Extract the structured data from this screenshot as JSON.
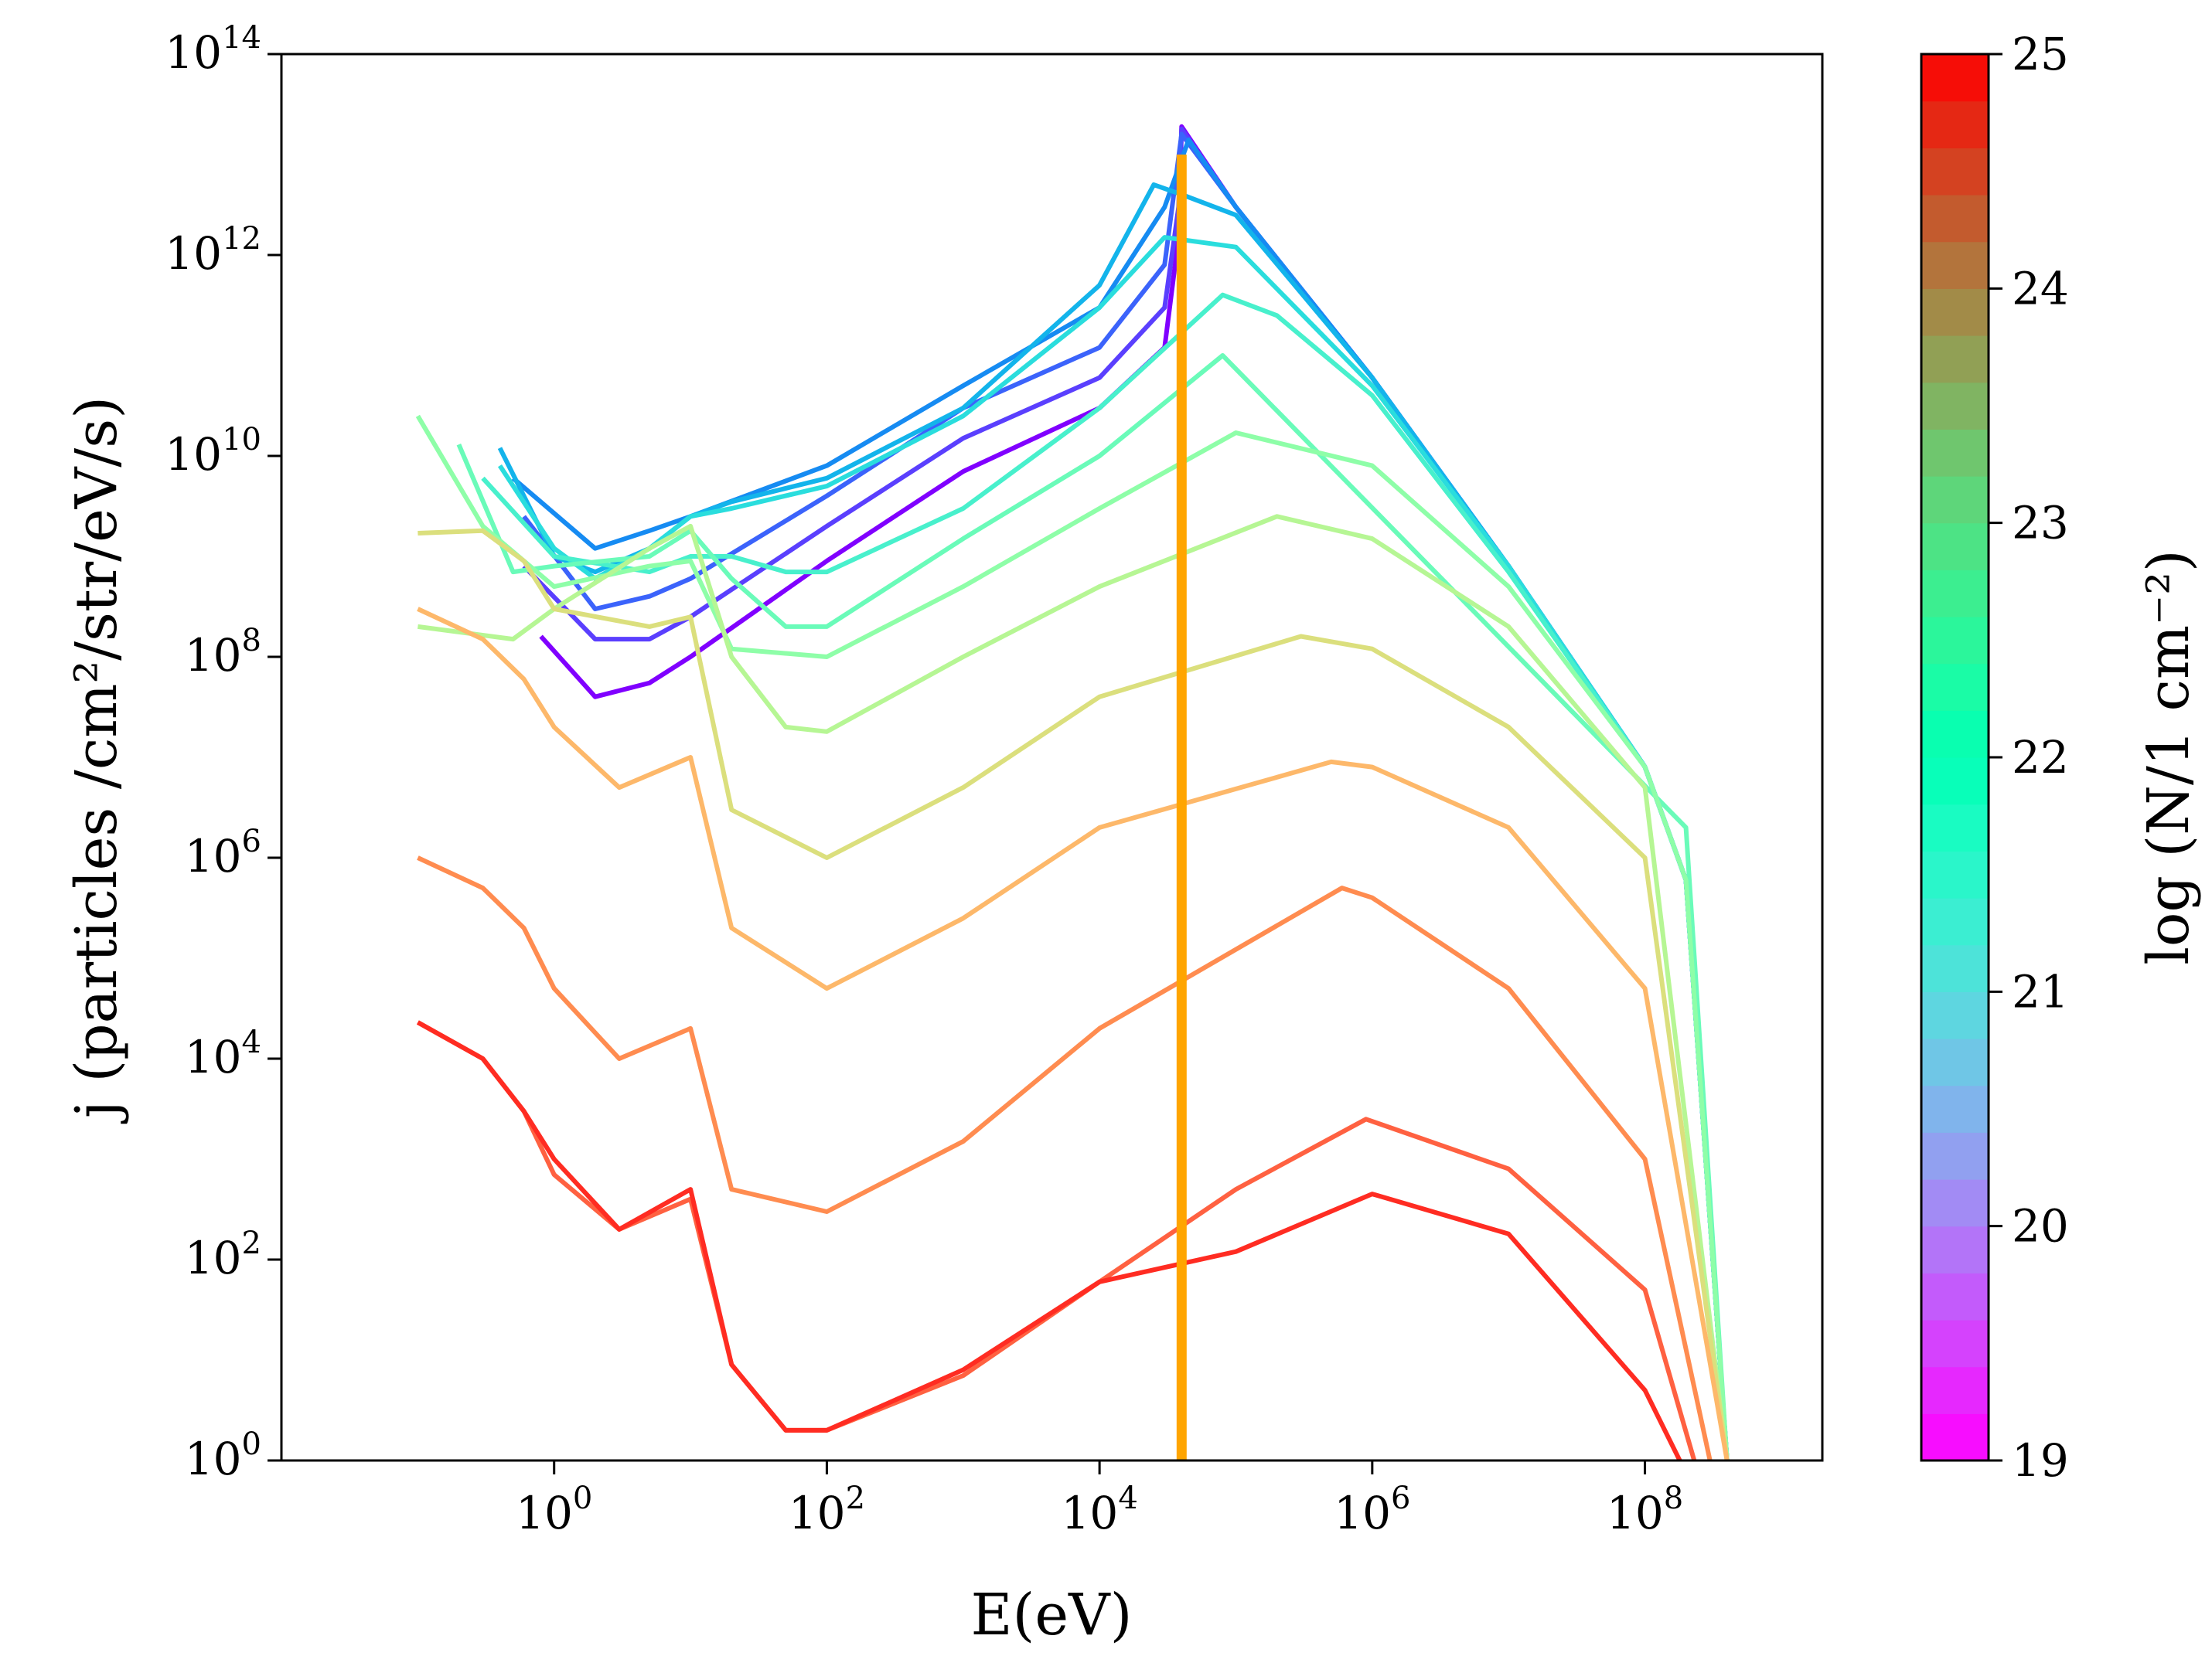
{
  "chart_data": {
    "type": "line",
    "xlabel": "E(eV)",
    "ylabel": "j (particles /cm²/str/eV/s)",
    "x_scale": "log",
    "y_scale": "log",
    "xlim": [
      0.01,
      2000000000
    ],
    "ylim": [
      1,
      100000000000000
    ],
    "x_ticks": [
      {
        "value": 1,
        "base": "10",
        "exp": "0"
      },
      {
        "value": 100,
        "base": "10",
        "exp": "2"
      },
      {
        "value": 10000,
        "base": "10",
        "exp": "4"
      },
      {
        "value": 1000000,
        "base": "10",
        "exp": "6"
      },
      {
        "value": 100000000,
        "base": "10",
        "exp": "8"
      }
    ],
    "y_ticks": [
      {
        "value": 1,
        "base": "10",
        "exp": "0"
      },
      {
        "value": 100,
        "base": "10",
        "exp": "2"
      },
      {
        "value": 10000,
        "base": "10",
        "exp": "4"
      },
      {
        "value": 1000000,
        "base": "10",
        "exp": "6"
      },
      {
        "value": 100000000,
        "base": "10",
        "exp": "8"
      },
      {
        "value": 10000000000,
        "base": "10",
        "exp": "10"
      },
      {
        "value": 1000000000000,
        "base": "10",
        "exp": "12"
      },
      {
        "value": 100000000000000,
        "base": "10",
        "exp": "14"
      }
    ],
    "colorbar": {
      "label": "log (N/1 cm⁻²)",
      "range": [
        19,
        25
      ],
      "ticks": [
        "19",
        "20",
        "21",
        "22",
        "23",
        "24",
        "25"
      ],
      "colormap": "rainbow"
    },
    "vertical_line": {
      "x": 40000,
      "color": "#ffa500"
    },
    "series": [
      {
        "logN": 19.0,
        "color": "#8000ff",
        "points": [
          [
            0.8,
            160000000
          ],
          [
            2,
            40000000
          ],
          [
            5,
            55000000
          ],
          [
            10,
            100000000
          ],
          [
            100,
            900000000
          ],
          [
            1000,
            7000000000
          ],
          [
            10000,
            30000000000
          ],
          [
            30000,
            120000000000
          ],
          [
            38000,
            1500000000000
          ],
          [
            40000,
            19000000000000
          ],
          [
            100000,
            3000000000000
          ],
          [
            1000000,
            60000000000
          ],
          [
            10000000,
            800000000
          ],
          [
            100000000,
            8000000
          ],
          [
            200000000,
            600000
          ],
          [
            400000000,
            1
          ]
        ]
      },
      {
        "logN": 19.5,
        "color": "#5a3ffe",
        "points": [
          [
            0.6,
            800000000
          ],
          [
            2,
            150000000
          ],
          [
            5,
            150000000
          ],
          [
            10,
            250000000
          ],
          [
            100,
            2000000000
          ],
          [
            1000,
            15000000000
          ],
          [
            10000,
            60000000000
          ],
          [
            30000,
            300000000000
          ],
          [
            38000,
            3000000000000
          ],
          [
            40000,
            18000000000000
          ],
          [
            100000,
            3000000000000
          ],
          [
            1000000,
            60000000000
          ],
          [
            10000000,
            800000000
          ],
          [
            100000000,
            8000000
          ],
          [
            200000000,
            600000
          ],
          [
            400000000,
            1
          ]
        ]
      },
      {
        "logN": 20.0,
        "color": "#3b63fb",
        "points": [
          [
            0.6,
            2500000000
          ],
          [
            2,
            300000000
          ],
          [
            5,
            400000000
          ],
          [
            10,
            600000000
          ],
          [
            100,
            4000000000
          ],
          [
            1000,
            30000000000
          ],
          [
            10000,
            120000000000
          ],
          [
            30000,
            800000000000
          ],
          [
            40000,
            16000000000000
          ],
          [
            100000,
            3000000000000
          ],
          [
            1000000,
            60000000000
          ],
          [
            10000000,
            800000000
          ],
          [
            100000000,
            8000000
          ],
          [
            200000000,
            600000
          ],
          [
            400000000,
            1
          ]
        ]
      },
      {
        "logN": 20.5,
        "color": "#168bf2",
        "points": [
          [
            0.5,
            6000000000
          ],
          [
            2,
            1200000000
          ],
          [
            5,
            1800000000
          ],
          [
            10,
            2500000000
          ],
          [
            100,
            8000000000
          ],
          [
            1000,
            50000000000
          ],
          [
            10000,
            300000000000
          ],
          [
            30000,
            3000000000000
          ],
          [
            45000,
            14000000000000
          ],
          [
            100000,
            3000000000000
          ],
          [
            1000000,
            60000000000
          ],
          [
            10000000,
            800000000
          ],
          [
            100000000,
            8000000
          ],
          [
            200000000,
            600000
          ],
          [
            400000000,
            1
          ]
        ]
      },
      {
        "logN": 20.8,
        "color": "#13b4eb",
        "points": [
          [
            0.4,
            12000000000
          ],
          [
            1,
            1000000000
          ],
          [
            2,
            700000000
          ],
          [
            5,
            1200000000
          ],
          [
            10,
            2500000000
          ],
          [
            20,
            3500000000
          ],
          [
            100,
            6000000000
          ],
          [
            1000,
            30000000000
          ],
          [
            10000,
            500000000000
          ],
          [
            25000,
            5000000000000
          ],
          [
            40000,
            4000000000000
          ],
          [
            100000,
            2500000000000
          ],
          [
            1000000,
            60000000000
          ],
          [
            10000000,
            800000000
          ],
          [
            100000000,
            8000000
          ],
          [
            200000000,
            600000
          ],
          [
            400000000,
            1
          ]
        ]
      },
      {
        "logN": 21.0,
        "color": "#2adddd",
        "points": [
          [
            0.4,
            8000000000
          ],
          [
            1,
            1200000000
          ],
          [
            2,
            600000000
          ],
          [
            5,
            1200000000
          ],
          [
            10,
            2500000000
          ],
          [
            20,
            3000000000
          ],
          [
            100,
            5000000000
          ],
          [
            1000,
            25000000000
          ],
          [
            10000,
            300000000000
          ],
          [
            30000,
            1500000000000
          ],
          [
            100000,
            1200000000000
          ],
          [
            1000000,
            50000000000
          ],
          [
            10000000,
            800000000
          ],
          [
            100000000,
            8000000
          ],
          [
            200000000,
            600000
          ],
          [
            400000000,
            1
          ]
        ]
      },
      {
        "logN": 21.3,
        "color": "#48f0cc",
        "points": [
          [
            0.3,
            6000000000
          ],
          [
            1,
            1000000000
          ],
          [
            5,
            700000000
          ],
          [
            10,
            1000000000
          ],
          [
            20,
            1000000000
          ],
          [
            50,
            700000000
          ],
          [
            100,
            700000000
          ],
          [
            1000,
            3000000000
          ],
          [
            10000,
            30000000000
          ],
          [
            80000,
            400000000000
          ],
          [
            200000,
            250000000000
          ],
          [
            1000000,
            40000000000
          ],
          [
            10000000,
            700000000
          ],
          [
            100000000,
            8000000
          ],
          [
            200000000,
            600000
          ],
          [
            400000000,
            1
          ]
        ]
      },
      {
        "logN": 21.6,
        "color": "#6afbb9",
        "points": [
          [
            0.2,
            13000000000
          ],
          [
            0.5,
            700000000
          ],
          [
            1,
            800000000
          ],
          [
            5,
            1000000000
          ],
          [
            10,
            1800000000
          ],
          [
            20,
            600000000
          ],
          [
            50,
            200000000
          ],
          [
            100,
            200000000
          ],
          [
            1000,
            1500000000
          ],
          [
            10000,
            10000000000
          ],
          [
            80000,
            100000000000
          ],
          [
            200000000,
            2000000
          ],
          [
            400000000,
            1
          ]
        ]
      },
      {
        "logN": 21.9,
        "color": "#8efea8",
        "points": [
          [
            0.1,
            25000000000
          ],
          [
            0.3,
            2000000000
          ],
          [
            1,
            500000000
          ],
          [
            5,
            800000000
          ],
          [
            10,
            900000000
          ],
          [
            20,
            120000000
          ],
          [
            100,
            100000000
          ],
          [
            1000,
            500000000
          ],
          [
            10000,
            3000000000
          ],
          [
            100000,
            17000000000
          ],
          [
            1000000,
            8000000000
          ],
          [
            10000000,
            500000000
          ],
          [
            100000000,
            8000000
          ],
          [
            200000000,
            600000
          ],
          [
            400000000,
            1
          ]
        ]
      },
      {
        "logN": 22.3,
        "color": "#b6f694",
        "points": [
          [
            0.1,
            200000000
          ],
          [
            0.5,
            150000000
          ],
          [
            1,
            300000000
          ],
          [
            5,
            1200000000
          ],
          [
            10,
            2000000000
          ],
          [
            20,
            100000000
          ],
          [
            50,
            20000000
          ],
          [
            100,
            18000000
          ],
          [
            1000,
            100000000
          ],
          [
            10000,
            500000000
          ],
          [
            200000,
            2500000000
          ],
          [
            1000000,
            1500000000
          ],
          [
            10000000,
            200000000
          ],
          [
            100000000,
            5000000
          ],
          [
            400000000,
            1
          ]
        ]
      },
      {
        "logN": 22.8,
        "color": "#dbdf7d",
        "points": [
          [
            0.1,
            1700000000
          ],
          [
            0.3,
            1800000000
          ],
          [
            0.6,
            900000000
          ],
          [
            1,
            300000000
          ],
          [
            5,
            200000000
          ],
          [
            10,
            250000000
          ],
          [
            20,
            3000000
          ],
          [
            100,
            1000000
          ],
          [
            1000,
            5000000
          ],
          [
            10000,
            40000000
          ],
          [
            300000,
            160000000
          ],
          [
            1000000,
            120000000
          ],
          [
            10000000,
            20000000
          ],
          [
            100000000,
            1000000
          ],
          [
            400000000,
            1
          ]
        ]
      },
      {
        "logN": 23.3,
        "color": "#fdb86a",
        "points": [
          [
            0.1,
            300000000
          ],
          [
            0.3,
            150000000
          ],
          [
            0.6,
            60000000
          ],
          [
            1,
            20000000
          ],
          [
            3,
            5000000
          ],
          [
            10,
            10000000
          ],
          [
            20,
            200000
          ],
          [
            100,
            50000
          ],
          [
            1000,
            250000
          ],
          [
            10000,
            2000000
          ],
          [
            500000,
            9000000
          ],
          [
            1000000,
            8000000
          ],
          [
            10000000,
            2000000
          ],
          [
            100000000,
            50000
          ],
          [
            400000000,
            1
          ]
        ]
      },
      {
        "logN": 23.8,
        "color": "#ff8c50",
        "points": [
          [
            0.1,
            1000000
          ],
          [
            0.3,
            500000
          ],
          [
            0.6,
            200000
          ],
          [
            1,
            50000
          ],
          [
            3,
            10000
          ],
          [
            10,
            20000
          ],
          [
            20,
            500
          ],
          [
            100,
            300
          ],
          [
            1000,
            1500
          ],
          [
            10000,
            20000
          ],
          [
            600000,
            500000
          ],
          [
            1000000,
            400000
          ],
          [
            10000000,
            50000
          ],
          [
            100000000,
            1000
          ],
          [
            300000000,
            1
          ]
        ]
      },
      {
        "logN": 24.3,
        "color": "#ff6141",
        "points": [
          [
            0.1,
            23000
          ],
          [
            0.3,
            10000
          ],
          [
            0.6,
            3000
          ],
          [
            1,
            700
          ],
          [
            3,
            200
          ],
          [
            10,
            400
          ],
          [
            20,
            9
          ],
          [
            50,
            2
          ],
          [
            100,
            2
          ],
          [
            1000,
            7
          ],
          [
            10000,
            60
          ],
          [
            100000,
            500
          ],
          [
            900000,
            2500
          ],
          [
            10000000,
            800
          ],
          [
            100000000,
            50
          ],
          [
            230000000,
            1
          ]
        ]
      },
      {
        "logN": 24.8,
        "color": "#ff2c22",
        "points": [
          [
            0.1,
            23000
          ],
          [
            0.3,
            10000
          ],
          [
            0.6,
            3000
          ],
          [
            1,
            1000
          ],
          [
            3,
            200
          ],
          [
            10,
            500
          ],
          [
            20,
            9
          ],
          [
            50,
            2
          ],
          [
            100,
            2
          ],
          [
            1000,
            8
          ],
          [
            10000,
            60
          ],
          [
            100000,
            120
          ],
          [
            1000000,
            450
          ],
          [
            10000000,
            180
          ],
          [
            100000000,
            5
          ],
          [
            180000000,
            1
          ]
        ]
      }
    ]
  }
}
